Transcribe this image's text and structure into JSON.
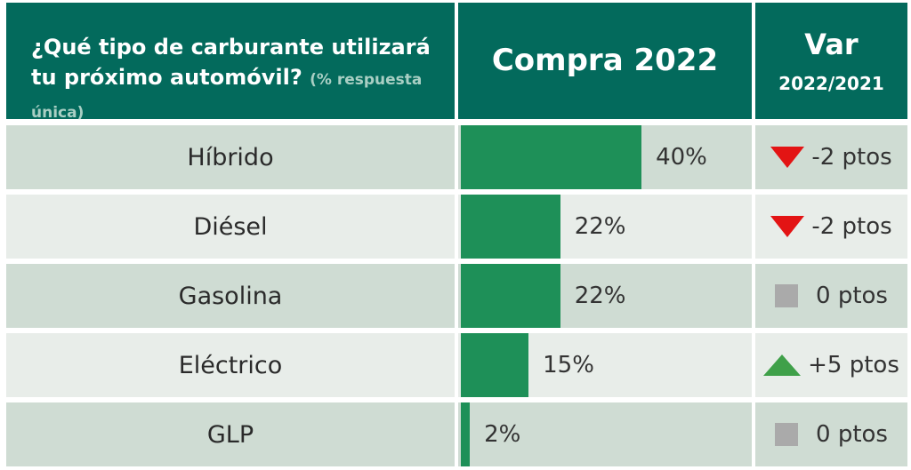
{
  "header": {
    "question": "¿Qué tipo de carburante utilizará tu próximo automóvil?",
    "question_note": "(% respuesta única)",
    "purchase": "Compra 2022",
    "var_title": "Var",
    "var_sub": "2022/2021"
  },
  "colors": {
    "header_bg": "#036a5c",
    "bar": "#1e9058",
    "row_shade": "#cfdcd3",
    "row_light": "#e8ede9",
    "down": "#e31414",
    "up": "#3fa049",
    "flat": "#aaaaaa"
  },
  "chart_data": {
    "type": "bar",
    "title": "¿Qué tipo de carburante utilizará tu próximo automóvil? (% respuesta única)",
    "xlabel": "",
    "ylabel": "Compra 2022",
    "unit": "%",
    "xlim": [
      0,
      65
    ],
    "categories": [
      "Híbrido",
      "Diésel",
      "Gasolina",
      "Eléctrico",
      "GLP"
    ],
    "values": [
      40,
      22,
      22,
      15,
      2
    ],
    "value_labels": [
      "40%",
      "22%",
      "22%",
      "15%",
      "2%"
    ],
    "variation": {
      "name": "Var 2022/2021",
      "values": [
        -2,
        -2,
        0,
        5,
        0
      ],
      "labels": [
        "-2 ptos",
        "-2 ptos",
        "0 ptos",
        "+5 ptos",
        "0 ptos"
      ],
      "icons": [
        "down-triangle-icon",
        "down-triangle-icon",
        "square-icon",
        "up-triangle-icon",
        "square-icon"
      ]
    }
  }
}
